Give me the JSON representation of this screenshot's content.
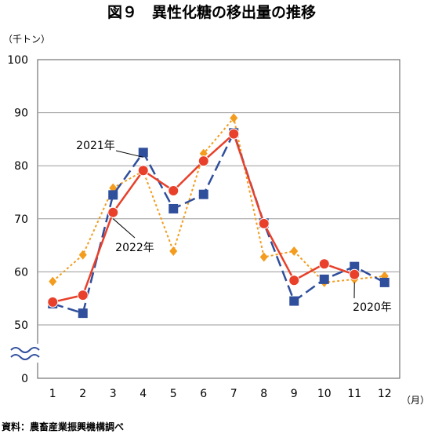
{
  "chart_data": {
    "type": "line",
    "title": "図９　異性化糖の移出量の推移",
    "y_unit": "（千トン）",
    "x_unit": "（月）",
    "source": "資料：農畜産業振興機構調べ",
    "categories": [
      "1",
      "2",
      "3",
      "4",
      "5",
      "6",
      "7",
      "8",
      "9",
      "10",
      "11",
      "12"
    ],
    "ylim": [
      50,
      100
    ],
    "y_ticks": [
      "100",
      "90",
      "80",
      "70",
      "60",
      "50"
    ],
    "y_zero_label": "0",
    "axis_break": true,
    "grid": true,
    "series": [
      {
        "name": "2020年",
        "color": "#f39c1e",
        "dash": "dotted",
        "marker": "diamond",
        "values": [
          58.2,
          63.2,
          75.8,
          79.0,
          63.9,
          82.3,
          89.0,
          62.8,
          63.9,
          58.0,
          58.6,
          59.2
        ]
      },
      {
        "name": "2021年",
        "color": "#2f4e9c",
        "dash": "dashed",
        "marker": "square",
        "values": [
          54.0,
          52.2,
          74.5,
          82.5,
          71.9,
          74.6,
          86.2,
          69.2,
          54.5,
          58.6,
          61.0,
          58.0
        ]
      },
      {
        "name": "2022年",
        "color": "#e8402a",
        "dash": "solid",
        "marker": "circle",
        "values": [
          54.3,
          55.6,
          71.2,
          79.1,
          75.3,
          80.9,
          86.0,
          69.1,
          58.4,
          61.5,
          59.5,
          null
        ]
      }
    ],
    "annotations": [
      {
        "text": "2021年",
        "series": "2021年",
        "point": 3
      },
      {
        "text": "2022年",
        "series": "2022年",
        "point": 2
      },
      {
        "text": "2020年",
        "series": "2020年",
        "point": 10
      }
    ]
  }
}
